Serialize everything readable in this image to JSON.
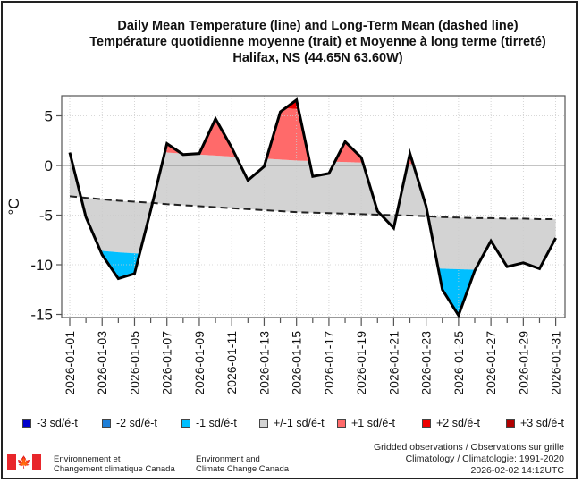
{
  "titles": {
    "line1": "Daily Mean Temperature (line) and Long-Term Mean (dashed line)",
    "line2": "Température quotidienne moyenne (trait) et Moyenne à long terme (tirreté)",
    "line3": "Halifax, NS (44.65N 63.60W)"
  },
  "chart_data": {
    "type": "line",
    "title": "Daily Mean Temperature (line) and Long-Term Mean (dashed line)",
    "subtitle": "Température quotidienne moyenne (trait) et Moyenne à long terme (tirreté) — Halifax, NS (44.65N 63.60W)",
    "xlabel": "",
    "ylabel": "°C",
    "ylim": [
      -15.5,
      7
    ],
    "yticks": [
      5,
      0,
      -5,
      -10,
      -15
    ],
    "grid": true,
    "x": [
      "2026-01-01",
      "2026-01-02",
      "2026-01-03",
      "2026-01-04",
      "2026-01-05",
      "2026-01-06",
      "2026-01-07",
      "2026-01-08",
      "2026-01-09",
      "2026-01-10",
      "2026-01-11",
      "2026-01-12",
      "2026-01-13",
      "2026-01-14",
      "2026-01-15",
      "2026-01-16",
      "2026-01-17",
      "2026-01-18",
      "2026-01-19",
      "2026-01-20",
      "2026-01-21",
      "2026-01-22",
      "2026-01-23",
      "2026-01-24",
      "2026-01-25",
      "2026-01-26",
      "2026-01-27",
      "2026-01-28",
      "2026-01-29",
      "2026-01-30",
      "2026-01-31"
    ],
    "xtick_labels": [
      "2026-01-01",
      "2026-01-03",
      "2026-01-05",
      "2026-01-07",
      "2026-01-09",
      "2026-01-11",
      "2026-01-13",
      "2026-01-15",
      "2026-01-17",
      "2026-01-19",
      "2026-01-21",
      "2026-01-23",
      "2026-01-25",
      "2026-01-27",
      "2026-01-29",
      "2026-01-31"
    ],
    "series": [
      {
        "name": "Daily Mean Temperature",
        "style": "solid",
        "values": [
          1.3,
          -5.2,
          -9.0,
          -11.4,
          -10.9,
          -4.5,
          2.2,
          1.1,
          1.2,
          4.7,
          1.8,
          -1.5,
          -0.1,
          5.4,
          6.6,
          -1.1,
          -0.8,
          2.4,
          0.8,
          -4.6,
          -6.3,
          1.2,
          -4.1,
          -12.5,
          -15.1,
          -10.6,
          -7.6,
          -10.2,
          -9.8,
          -10.4,
          -7.3
        ]
      },
      {
        "name": "Long-Term Mean",
        "style": "dashed",
        "values": [
          -3.1,
          -3.25,
          -3.4,
          -3.55,
          -3.65,
          -3.75,
          -3.9,
          -4.0,
          -4.1,
          -4.2,
          -4.3,
          -4.4,
          -4.5,
          -4.6,
          -4.7,
          -4.75,
          -4.8,
          -4.85,
          -4.9,
          -4.95,
          -5.0,
          -5.05,
          -5.1,
          -5.2,
          -5.25,
          -5.3,
          -5.3,
          -5.35,
          -5.35,
          -5.4,
          -5.4
        ]
      }
    ],
    "std_dev": 5.2,
    "zero_line": 0,
    "legend": [
      {
        "label": "-3 sd/é-t",
        "color": "#0000cc"
      },
      {
        "label": "-2 sd/é-t",
        "color": "#1e7fd8"
      },
      {
        "label": "-1 sd/é-t",
        "color": "#00bfff"
      },
      {
        "label": "+/-1 sd/é-t",
        "color": "#d3d3d3"
      },
      {
        "label": "+1 sd/é-t",
        "color": "#ff6a6a"
      },
      {
        "label": "+2 sd/é-t",
        "color": "#ee0000"
      },
      {
        "label": "+3 sd/é-t",
        "color": "#b00000"
      }
    ],
    "legend_position": "bottom"
  },
  "footer": {
    "dept_fr_line1": "Environnement et",
    "dept_fr_line2": "Changement climatique Canada",
    "dept_en_line1": "Environment and",
    "dept_en_line2": "Climate Change Canada",
    "source_line1": "Gridded observations / Observations sur grille",
    "source_line2": "Climatology / Climatologie: 1991-2020",
    "source_line3": "2026-02-02 14:12UTC",
    "flag_icon": "canada-flag"
  }
}
